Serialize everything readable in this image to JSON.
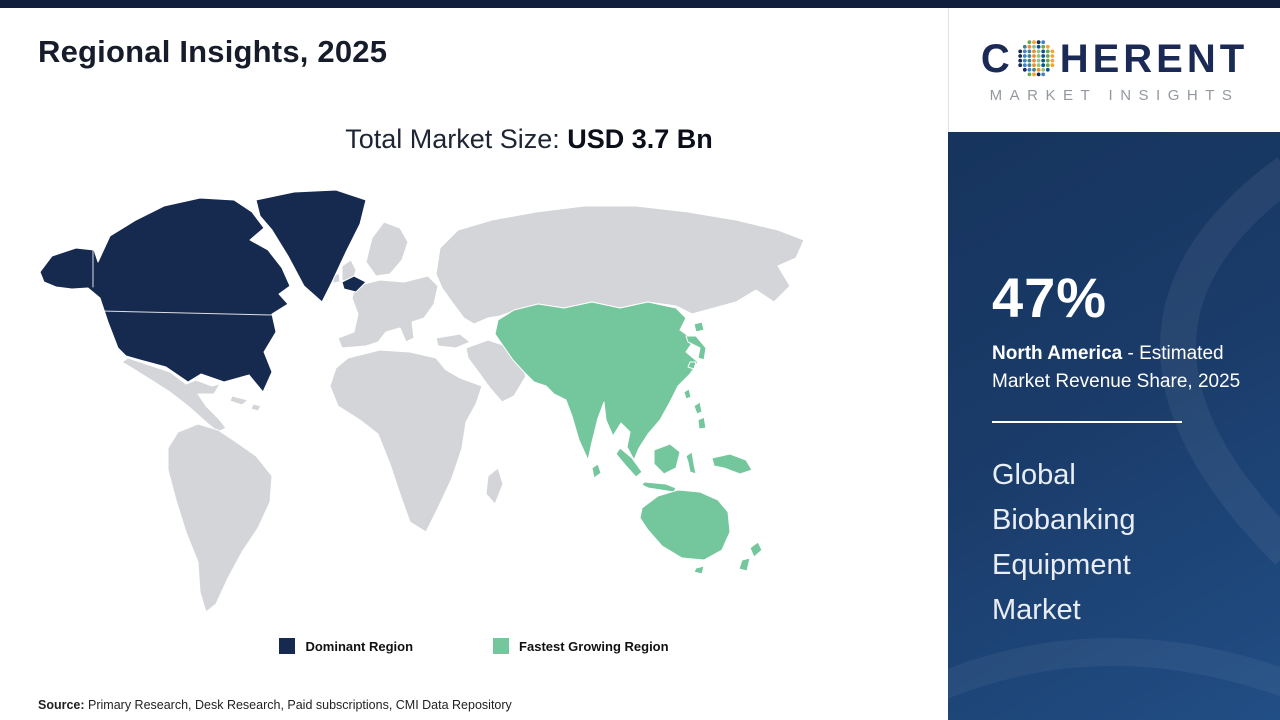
{
  "header": {
    "title": "Regional Insights, 2025"
  },
  "subtitle": {
    "prefix": "Total Market Size: ",
    "value": "USD 3.7 Bn"
  },
  "legend": [
    {
      "label": "Dominant Region",
      "color": "#16294e"
    },
    {
      "label": "Fastest Growing Region",
      "color": "#74c79c"
    }
  ],
  "source": {
    "label": "Source:",
    "text": " Primary Research, Desk Research, Paid subscriptions, CMI Data Repository"
  },
  "logo": {
    "word_start": "C",
    "word_end": "HERENT",
    "tagline": "MARKET INSIGHTS",
    "globe_colors": [
      "#6aa84f",
      "#f6a431",
      "#1b2a55",
      "#3d85c6",
      "#45818e",
      "#e69138",
      "#93c47d",
      "#0b5394"
    ]
  },
  "sidebar": {
    "stat_value": "47%",
    "stat_region": "North America",
    "stat_desc": " - Estimated Market Revenue Share, 2025",
    "market_title": "Global Biobanking Equipment Market"
  },
  "colors": {
    "dominant": "#16294e",
    "growing": "#74c79c",
    "map_gray": "#d3d5d8",
    "panel_top": "#16345d",
    "panel_bottom": "#214e85",
    "strip": "#101f3d",
    "logo_navy": "#1b2a55",
    "logo_gray": "#93989f"
  },
  "chart_data": {
    "type": "map",
    "title": "Regional Insights, 2025",
    "subtitle": "Total Market Size: USD 3.7 Bn",
    "total_market_size_usd_bn": 3.7,
    "year": 2025,
    "legend_entries": [
      "Dominant Region",
      "Fastest Growing Region"
    ],
    "regions": [
      {
        "legend": "Dominant Region",
        "area": "North America",
        "color": "#16294e",
        "share_pct_2025": 47
      },
      {
        "legend": "Fastest Growing Region",
        "area": "Asia Pacific",
        "color": "#74c79c"
      }
    ],
    "callout": {
      "value_pct": 47,
      "region": "North America",
      "metric": "Estimated Market Revenue Share",
      "year": 2025
    },
    "market": "Global Biobanking Equipment Market",
    "source": "Primary Research, Desk Research, Paid subscriptions, CMI Data Repository"
  }
}
